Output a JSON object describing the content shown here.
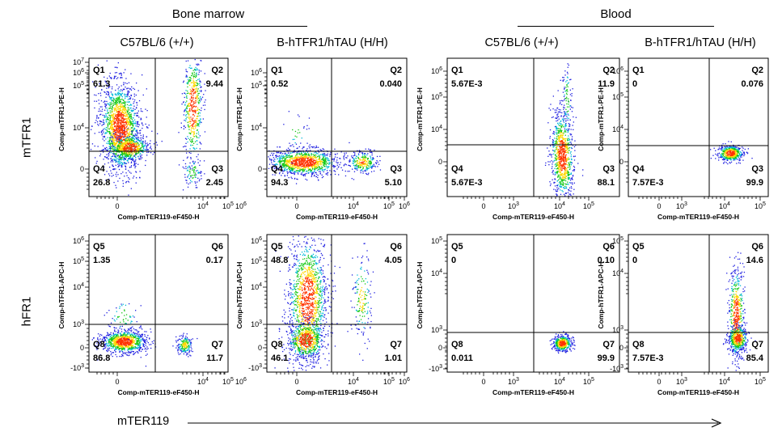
{
  "group_titles": {
    "bone_marrow": "Bone marrow",
    "blood": "Blood"
  },
  "column_titles": [
    "C57BL/6 (+/+)",
    "B-hTFR1/hTAU (H/H)",
    "C57BL/6 (+/+)",
    "B-hTFR1/hTAU (H/H)"
  ],
  "row_labels": {
    "top": "mTFR1",
    "bottom": "hFR1"
  },
  "bottom_axis_label": "mTER119",
  "colors": {
    "dots": "#1f1fe0",
    "core_mid": "#14c814",
    "core_hot": "#ffd700",
    "core_max": "#ff3300",
    "gate": "#000000"
  },
  "chart_data": [
    {
      "type": "scatter",
      "row": "mTFR1",
      "column": "C57BL/6 (+/+)",
      "group": "Bone marrow",
      "xlabel": "Comp-mTER119-eF450-H",
      "ylabel": "Comp-mTFR1-PE-H",
      "x_ticks": [
        "0",
        "10^4",
        "10^5",
        "10^6"
      ],
      "y_ticks": [
        "10^7",
        "10^6",
        "10^5",
        "10^4",
        "0"
      ],
      "quadrants": [
        {
          "name": "Q1",
          "value": "61.3"
        },
        {
          "name": "Q2",
          "value": "9.44"
        },
        {
          "name": "Q4",
          "value": "26.8"
        },
        {
          "name": "Q3",
          "value": "2.45"
        }
      ]
    },
    {
      "type": "scatter",
      "row": "mTFR1",
      "column": "B-hTFR1/hTAU (H/H)",
      "group": "Bone marrow",
      "xlabel": "Comp-mTER119-eF450-H",
      "ylabel": "Comp-mTFR1-PE-H",
      "x_ticks": [
        "0",
        "10^4",
        "10^5",
        "10^6"
      ],
      "y_ticks": [
        "10^6",
        "10^5",
        "10^4",
        "0"
      ],
      "quadrants": [
        {
          "name": "Q1",
          "value": "0.52"
        },
        {
          "name": "Q2",
          "value": "0.040"
        },
        {
          "name": "Q4",
          "value": "94.3"
        },
        {
          "name": "Q3",
          "value": "5.10"
        }
      ]
    },
    {
      "type": "scatter",
      "row": "mTFR1",
      "column": "C57BL/6 (+/+)",
      "group": "Blood",
      "xlabel": "Comp-mTER119-eF450-H",
      "ylabel": "Comp-mTFR1-PE-H",
      "x_ticks": [
        "0",
        "10^3",
        "10^4",
        "10^5"
      ],
      "y_ticks": [
        "10^6",
        "10^5",
        "10^4",
        "0"
      ],
      "quadrants": [
        {
          "name": "Q1",
          "value": "5.67E-3"
        },
        {
          "name": "Q2",
          "value": "11.9"
        },
        {
          "name": "Q4",
          "value": "5.67E-3"
        },
        {
          "name": "Q3",
          "value": "88.1"
        }
      ]
    },
    {
      "type": "scatter",
      "row": "mTFR1",
      "column": "B-hTFR1/hTAU (H/H)",
      "group": "Blood",
      "xlabel": "Comp-mTER119-eF450-H",
      "ylabel": "Comp-mTFR1-PE-H",
      "x_ticks": [
        "0",
        "10^3",
        "10^4",
        "10^5"
      ],
      "y_ticks": [
        "10^6",
        "10^5",
        "10^4",
        "0"
      ],
      "quadrants": [
        {
          "name": "Q1",
          "value": "0"
        },
        {
          "name": "Q2",
          "value": "0.076"
        },
        {
          "name": "Q4",
          "value": "7.57E-3"
        },
        {
          "name": "Q3",
          "value": "99.9"
        }
      ]
    },
    {
      "type": "scatter",
      "row": "hFR1",
      "column": "C57BL/6 (+/+)",
      "group": "Bone marrow",
      "xlabel": "Comp-mTER119-eF450-H",
      "ylabel": "Comp-hTFR1-APC-H",
      "x_ticks": [
        "0",
        "10^4",
        "10^5",
        "10^6"
      ],
      "y_ticks": [
        "10^6",
        "10^5",
        "10^4",
        "10^3",
        "0",
        "-10^3"
      ],
      "quadrants": [
        {
          "name": "Q5",
          "value": "1.35"
        },
        {
          "name": "Q6",
          "value": "0.17"
        },
        {
          "name": "Q8",
          "value": "86.8"
        },
        {
          "name": "Q7",
          "value": "11.7"
        }
      ]
    },
    {
      "type": "scatter",
      "row": "hFR1",
      "column": "B-hTFR1/hTAU (H/H)",
      "group": "Bone marrow",
      "xlabel": "Comp-mTER119-eF450-H",
      "ylabel": "Comp-hTFR1-APC-H",
      "x_ticks": [
        "0",
        "10^4",
        "10^5",
        "10^6"
      ],
      "y_ticks": [
        "10^6",
        "10^5",
        "10^4",
        "10^3",
        "0",
        "-10^3"
      ],
      "quadrants": [
        {
          "name": "Q5",
          "value": "48.8"
        },
        {
          "name": "Q6",
          "value": "4.05"
        },
        {
          "name": "Q8",
          "value": "46.1"
        },
        {
          "name": "Q7",
          "value": "1.01"
        }
      ]
    },
    {
      "type": "scatter",
      "row": "hFR1",
      "column": "C57BL/6 (+/+)",
      "group": "Blood",
      "xlabel": "Comp-mTER119-eF450-H",
      "ylabel": "Comp-hTFR1-APC-H",
      "x_ticks": [
        "0",
        "10^3",
        "10^4",
        "10^5"
      ],
      "y_ticks": [
        "10^5",
        "10^4",
        "10^3",
        "0",
        "-10^3"
      ],
      "quadrants": [
        {
          "name": "Q5",
          "value": "0"
        },
        {
          "name": "Q6",
          "value": "0.10"
        },
        {
          "name": "Q8",
          "value": "0.011"
        },
        {
          "name": "Q7",
          "value": "99.9"
        }
      ]
    },
    {
      "type": "scatter",
      "row": "hFR1",
      "column": "B-hTFR1/hTAU (H/H)",
      "group": "Blood",
      "xlabel": "Comp-mTER119-eF450-H",
      "ylabel": "Comp-hTFR1-APC-H",
      "x_ticks": [
        "0",
        "10^3",
        "10^4",
        "10^5"
      ],
      "y_ticks": [
        "10^5",
        "10^4",
        "10^3",
        "0",
        "-10^3"
      ],
      "quadrants": [
        {
          "name": "Q5",
          "value": "0"
        },
        {
          "name": "Q6",
          "value": "14.6"
        },
        {
          "name": "Q8",
          "value": "7.57E-3"
        },
        {
          "name": "Q7",
          "value": "85.4"
        }
      ]
    }
  ]
}
